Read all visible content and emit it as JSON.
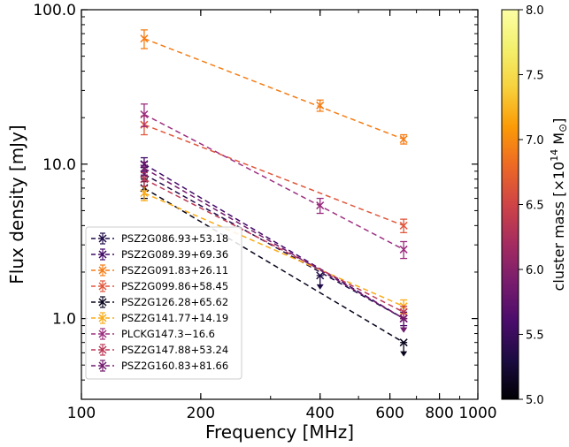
{
  "chart_data": {
    "type": "line",
    "xlabel": "Frequency [MHz]",
    "ylabel": "Flux density [mJy]",
    "xscale": "log",
    "yscale": "log",
    "xlim": [
      100,
      1000
    ],
    "ylim": [
      0.3,
      100
    ],
    "x_ticks": [
      {
        "value": 100,
        "label": "100"
      },
      {
        "value": 200,
        "label": "200"
      },
      {
        "value": 400,
        "label": "400"
      },
      {
        "value": 600,
        "label": "600"
      },
      {
        "value": 800,
        "label": "800"
      },
      {
        "value": 1000,
        "label": "1000"
      }
    ],
    "y_ticks": [
      {
        "value": 1,
        "label": "1.0"
      },
      {
        "value": 10,
        "label": "10.0"
      },
      {
        "value": 100,
        "label": "100.0"
      }
    ],
    "colorbar": {
      "label": "cluster mass [×10",
      "label_exp": "14",
      "label_unit": " M",
      "label_sun": "⊙",
      "label_end": "]",
      "range": [
        5.0,
        8.0
      ],
      "ticks": [
        "5.0",
        "5.5",
        "6.0",
        "6.5",
        "7.0",
        "7.5",
        "8.0"
      ],
      "colormap": "inferno"
    },
    "legend_position": "lower-left",
    "series": [
      {
        "name": "PSZ2G086.93+53.18",
        "color": "#1f0c48",
        "points": [
          {
            "x": 144,
            "y": 8.6,
            "err": 0.9
          },
          {
            "x": 400,
            "y": 1.9,
            "upper_limit": true
          },
          {
            "x": 650,
            "y": 1.0,
            "upper_limit": true
          }
        ],
        "fit": [
          [
            144,
            8.6
          ],
          [
            650,
            1.0
          ]
        ]
      },
      {
        "name": "PSZ2G089.39+69.36",
        "color": "#410967",
        "points": [
          {
            "x": 144,
            "y": 10.0,
            "err": 1.0
          },
          {
            "x": 650,
            "y": 1.0,
            "err": 0.1
          }
        ],
        "fit": [
          [
            144,
            10.0
          ],
          [
            650,
            1.0
          ]
        ]
      },
      {
        "name": "PSZ2G091.83+26.11",
        "color": "#f57d15",
        "points": [
          {
            "x": 144,
            "y": 65.0,
            "err": 9.0
          },
          {
            "x": 400,
            "y": 24.0,
            "err": 2.0
          },
          {
            "x": 650,
            "y": 14.5,
            "err": 1.0
          }
        ],
        "fit": [
          [
            144,
            65.0
          ],
          [
            650,
            14.5
          ]
        ]
      },
      {
        "name": "PSZ2G099.86+58.45",
        "color": "#e0573c",
        "points": [
          {
            "x": 144,
            "y": 18.0,
            "err": 2.5
          },
          {
            "x": 650,
            "y": 4.0,
            "err": 0.4
          }
        ],
        "fit": [
          [
            144,
            18.0
          ],
          [
            650,
            4.0
          ]
        ]
      },
      {
        "name": "PSZ2G126.28+65.62",
        "color": "#08051d",
        "points": [
          {
            "x": 144,
            "y": 7.0,
            "err": 1.0
          },
          {
            "x": 650,
            "y": 0.7,
            "upper_limit": true
          }
        ],
        "fit": [
          [
            144,
            7.0
          ],
          [
            650,
            0.7
          ]
        ]
      },
      {
        "name": "PSZ2G141.77+14.19",
        "color": "#fbaa14",
        "points": [
          {
            "x": 144,
            "y": 6.5,
            "err": 0.7
          },
          {
            "x": 650,
            "y": 1.2,
            "err": 0.12
          }
        ],
        "fit": [
          [
            144,
            6.5
          ],
          [
            650,
            1.2
          ]
        ]
      },
      {
        "name": "PLCKG147.3−16.6",
        "color": "#9c2e7f",
        "points": [
          {
            "x": 144,
            "y": 21.0,
            "err": 3.5
          },
          {
            "x": 400,
            "y": 5.4,
            "err": 0.6
          },
          {
            "x": 650,
            "y": 2.8,
            "err": 0.35
          }
        ],
        "fit": [
          [
            144,
            21.0
          ],
          [
            650,
            2.8
          ]
        ]
      },
      {
        "name": "PSZ2G147.88+53.24",
        "color": "#bb3755",
        "points": [
          {
            "x": 144,
            "y": 8.0,
            "err": 0.8
          },
          {
            "x": 650,
            "y": 1.1,
            "err": 0.1
          }
        ],
        "fit": [
          [
            144,
            8.0
          ],
          [
            650,
            1.1
          ]
        ]
      },
      {
        "name": "PSZ2G160.83+81.66",
        "color": "#721a6e",
        "points": [
          {
            "x": 144,
            "y": 9.4,
            "err": 0.9
          },
          {
            "x": 650,
            "y": 1.0,
            "upper_limit": true
          }
        ],
        "fit": [
          [
            144,
            9.4
          ],
          [
            650,
            1.0
          ]
        ]
      }
    ]
  }
}
